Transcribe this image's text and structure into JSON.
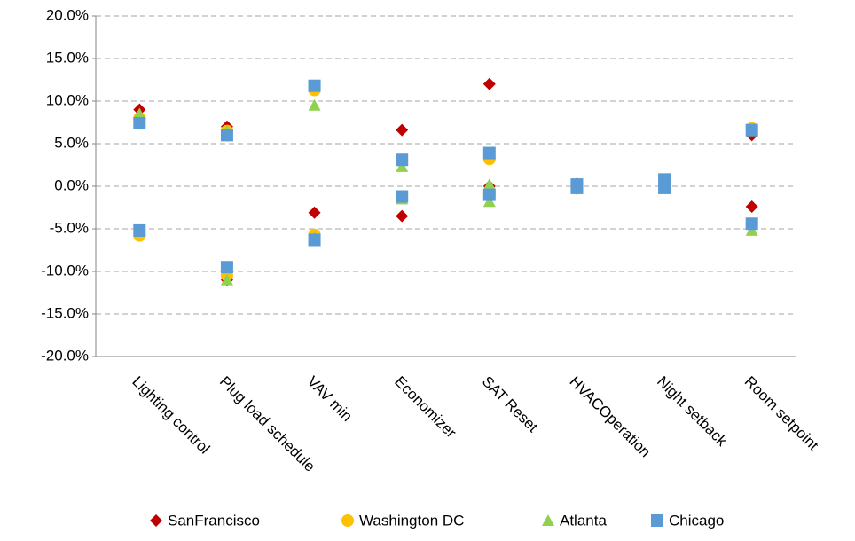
{
  "chart_data": {
    "type": "scatter",
    "categories": [
      "Lighting control",
      "Plug load schedule",
      "VAV min",
      "Economizer",
      "SAT Reset",
      "HVACOperation",
      "Night setback",
      "Room setpoint"
    ],
    "series": [
      {
        "name": "SanFrancisco",
        "color": "#c00000",
        "marker": "diamond",
        "values": [
          [
            9.0,
            -5.3
          ],
          [
            7.0,
            -11.0
          ],
          [
            11.8,
            -3.1
          ],
          [
            6.6,
            -3.5
          ],
          [
            12.0,
            0.0
          ],
          [
            0.3,
            -0.3
          ],
          [
            0.5,
            -0.1
          ],
          [
            6.0,
            -2.4
          ]
        ]
      },
      {
        "name": "Washington DC",
        "color": "#ffc000",
        "marker": "circle",
        "values": [
          [
            8.0,
            -5.8
          ],
          [
            6.5,
            -10.5
          ],
          [
            11.3,
            -5.7
          ],
          [
            3.0,
            -1.3
          ],
          [
            3.2,
            -0.8
          ],
          [
            0.2,
            -0.2
          ],
          [
            0.5,
            -0.1
          ],
          [
            6.8,
            -4.5
          ]
        ]
      },
      {
        "name": "Atlanta",
        "color": "#92d050",
        "marker": "triangle",
        "values": [
          [
            8.5,
            -5.3
          ],
          [
            6.5,
            -11.0
          ],
          [
            9.5,
            -6.0
          ],
          [
            2.3,
            -1.5
          ],
          [
            0.2,
            -1.8
          ],
          [
            0.2,
            -0.2
          ],
          [
            0.5,
            -0.1
          ],
          [
            6.5,
            -5.2
          ]
        ]
      },
      {
        "name": "Chicago",
        "color": "#5b9bd5",
        "marker": "square",
        "values": [
          [
            7.4,
            -5.2
          ],
          [
            6.0,
            -9.5
          ],
          [
            11.8,
            -6.3
          ],
          [
            3.1,
            -1.2
          ],
          [
            3.9,
            -1.0
          ],
          [
            0.2,
            -0.2
          ],
          [
            0.8,
            -0.2
          ],
          [
            6.6,
            -4.4
          ]
        ]
      }
    ],
    "ylim": [
      -20,
      20
    ],
    "yticks": [
      {
        "value": -20,
        "label": "-20.0%"
      },
      {
        "value": -15,
        "label": "-15.0%"
      },
      {
        "value": -10,
        "label": "-10.0%"
      },
      {
        "value": -5,
        "label": "-5.0%"
      },
      {
        "value": 0,
        "label": "0.0%"
      },
      {
        "value": 5,
        "label": "5.0%"
      },
      {
        "value": 10,
        "label": "10.0%"
      },
      {
        "value": 15,
        "label": "15.0%"
      },
      {
        "value": 20,
        "label": "20.0%"
      }
    ],
    "grid": true,
    "legend": "bottom"
  }
}
